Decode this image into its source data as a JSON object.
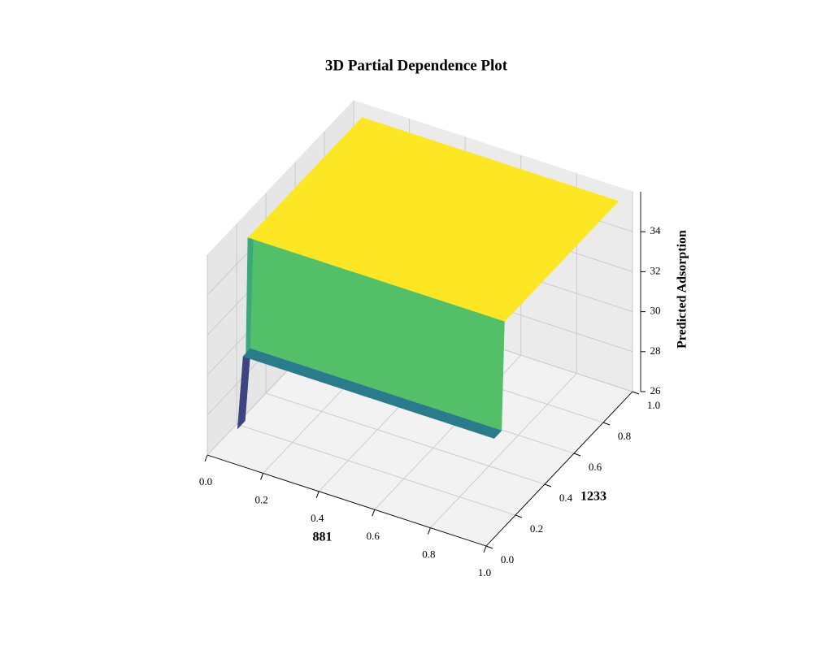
{
  "chart_data": {
    "type": "surface",
    "title": "3D Partial Dependence Plot",
    "xlabel": "881",
    "ylabel": "1233",
    "zlabel": "Predicted Adsorption",
    "colormap": "viridis",
    "grid": true,
    "xlim": [
      0,
      1
    ],
    "ylim": [
      0,
      1
    ],
    "zlim": [
      26,
      36
    ],
    "xticks": [
      {
        "value": 0,
        "label": "0.0"
      },
      {
        "value": 0.2,
        "label": "0.2"
      },
      {
        "value": 0.4,
        "label": "0.4"
      },
      {
        "value": 0.6,
        "label": "0.6"
      },
      {
        "value": 0.8,
        "label": "0.8"
      },
      {
        "value": 1,
        "label": "1.0"
      }
    ],
    "yticks": [
      {
        "value": 0,
        "label": "0.0"
      },
      {
        "value": 0.2,
        "label": "0.2"
      },
      {
        "value": 0.4,
        "label": "0.4"
      },
      {
        "value": 0.6,
        "label": "0.6"
      },
      {
        "value": 0.8,
        "label": "0.8"
      },
      {
        "value": 1,
        "label": "1.0"
      }
    ],
    "zticks": [
      26,
      28,
      30,
      32,
      34
    ],
    "x": [
      0.03,
      0.05,
      0.1,
      0.2,
      0.3,
      0.4,
      0.5,
      0.6,
      0.7,
      0.8,
      0.95
    ],
    "y": [
      0.15,
      0.2,
      0.22,
      0.3,
      0.4,
      0.5,
      0.6,
      0.7,
      0.8,
      0.9,
      1.0
    ],
    "z": [
      [
        26.3,
        30,
        30,
        30,
        30,
        30,
        30,
        30,
        30,
        30,
        30
      ],
      [
        26.3,
        30,
        30,
        30,
        30,
        30,
        30,
        30,
        30,
        30,
        30
      ],
      [
        35.3,
        35.3,
        35.3,
        35.3,
        35.3,
        35.3,
        35.3,
        35.3,
        35.3,
        35.3,
        35.3
      ],
      [
        35.3,
        35.3,
        35.3,
        35.3,
        35.3,
        35.3,
        35.3,
        35.3,
        35.3,
        35.3,
        35.3
      ],
      [
        35.3,
        35.3,
        35.3,
        35.3,
        35.3,
        35.3,
        35.3,
        35.3,
        35.3,
        35.3,
        35.3
      ],
      [
        35.3,
        35.3,
        35.3,
        35.3,
        35.3,
        35.3,
        35.3,
        35.3,
        35.3,
        35.3,
        35.3
      ],
      [
        35.3,
        35.3,
        35.3,
        35.3,
        35.3,
        35.3,
        35.3,
        35.3,
        35.3,
        35.3,
        35.3
      ],
      [
        35.3,
        35.3,
        35.3,
        35.3,
        35.3,
        35.3,
        35.3,
        35.3,
        35.3,
        35.3,
        35.3
      ],
      [
        35.3,
        35.3,
        35.3,
        35.3,
        35.3,
        35.3,
        35.3,
        35.3,
        35.3,
        35.3,
        35.3
      ],
      [
        35.3,
        35.3,
        35.3,
        35.3,
        35.3,
        35.3,
        35.3,
        35.3,
        35.3,
        35.3,
        35.3
      ],
      [
        35.3,
        35.3,
        35.3,
        35.3,
        35.3,
        35.3,
        35.3,
        35.3,
        35.3,
        35.3,
        35.3
      ]
    ]
  }
}
